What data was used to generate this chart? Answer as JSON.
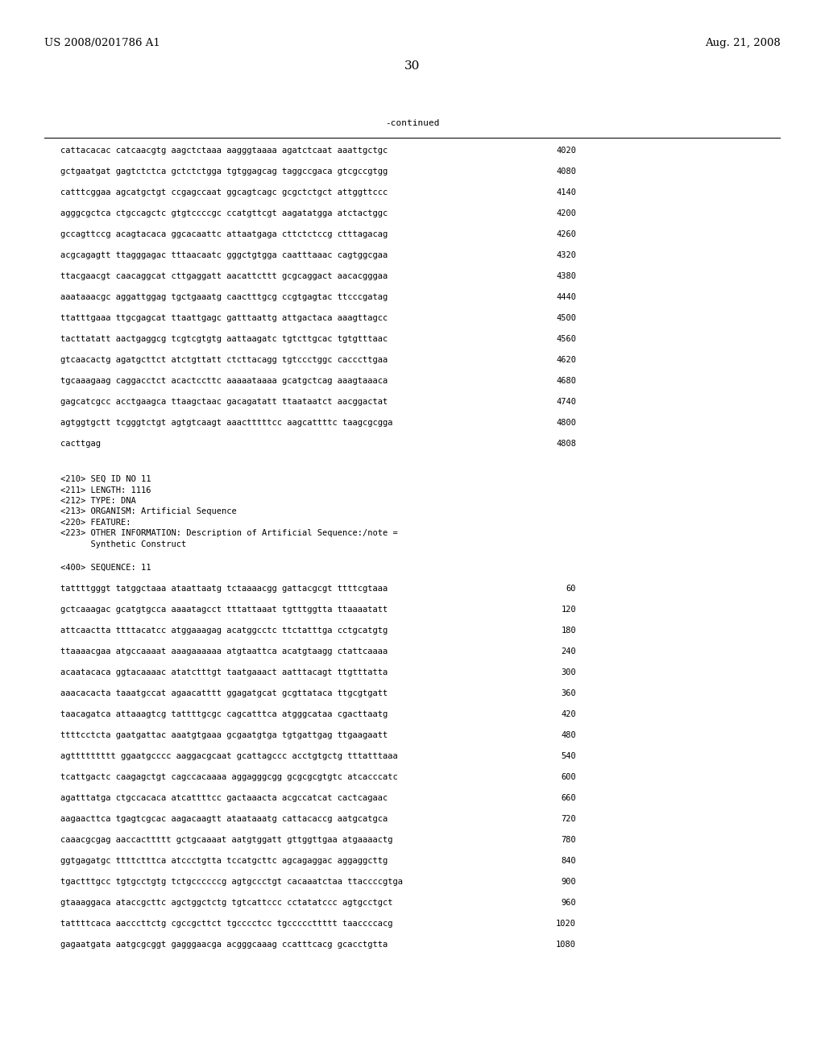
{
  "header_left": "US 2008/0201786 A1",
  "header_right": "Aug. 21, 2008",
  "page_number": "30",
  "continued_label": "-continued",
  "background_color": "#ffffff",
  "text_color": "#000000",
  "mono_font_size": 7.5,
  "header_font_size": 9.5,
  "page_num_font_size": 11,
  "sequence_lines_top": [
    [
      "cattacacac catcaacgtg aagctctaaa aagggtaaaa agatctcaat aaattgctgc",
      "4020"
    ],
    [
      "gctgaatgat gagtctctca gctctctgga tgtggagcag taggccgaca gtcgccgtgg",
      "4080"
    ],
    [
      "catttcggaa agcatgctgt ccgagccaat ggcagtcagc gcgctctgct attggttccc",
      "4140"
    ],
    [
      "agggcgctca ctgccagctc gtgtccccgc ccatgttcgt aagatatgga atctactggc",
      "4200"
    ],
    [
      "gccagttccg acagtacaca ggcacaattc attaatgaga cttctctccg ctttagacag",
      "4260"
    ],
    [
      "acgcagagtt ttagggagac tttaacaatc gggctgtgga caatttaaac cagtggcgaa",
      "4320"
    ],
    [
      "ttacgaacgt caacaggcat cttgaggatt aacattcttt gcgcaggact aacacgggaa",
      "4380"
    ],
    [
      "aaataaacgc aggattggag tgctgaaatg caactttgcg ccgtgagtac ttcccgatag",
      "4440"
    ],
    [
      "ttatttgaaa ttgcgagcat ttaattgagc gatttaattg attgactaca aaagttagcc",
      "4500"
    ],
    [
      "tacttatatt aactgaggcg tcgtcgtgtg aattaagatc tgtcttgcac tgtgtttaac",
      "4560"
    ],
    [
      "gtcaacactg agatgcttct atctgttatt ctcttacagg tgtccctggc cacccttgaa",
      "4620"
    ],
    [
      "tgcaaagaag caggacctct acactccttc aaaaataaaa gcatgctcag aaagtaaaca",
      "4680"
    ],
    [
      "gagcatcgcc acctgaagca ttaagctaac gacagatatt ttaataatct aacggactat",
      "4740"
    ],
    [
      "agtggtgctt tcgggtctgt agtgtcaagt aaactttttcc aagcattttc taagcgcgga",
      "4800"
    ],
    [
      "cacttgag",
      "4808"
    ]
  ],
  "metadata_lines": [
    "<210> SEQ ID NO 11",
    "<211> LENGTH: 1116",
    "<212> TYPE: DNA",
    "<213> ORGANISM: Artificial Sequence",
    "<220> FEATURE:",
    "<223> OTHER INFORMATION: Description of Artificial Sequence:/note =",
    "      Synthetic Construct"
  ],
  "sequence_label": "<400> SEQUENCE: 11",
  "sequence_lines_bottom": [
    [
      "tattttgggt tatggctaaa ataattaatg tctaaaacgg gattacgcgt ttttcgtaaa",
      "60"
    ],
    [
      "gctcaaagac gcatgtgcca aaaatagcct tttattaaat tgtttggtta ttaaaatatt",
      "120"
    ],
    [
      "attcaactta ttttacatcc atggaaagag acatggcctc ttctatttga cctgcatgtg",
      "180"
    ],
    [
      "ttaaaacgaa atgccaaaat aaagaaaaaa atgtaattca acatgtaagg ctattcaaaa",
      "240"
    ],
    [
      "acaatacaca ggtacaaaac atatctttgt taatgaaact aatttacagt ttgtttatta",
      "300"
    ],
    [
      "aaacacacta taaatgccat agaacatttt ggagatgcat gcgttataca ttgcgtgatt",
      "360"
    ],
    [
      "taacagatca attaaagtcg tattttgcgc cagcatttca atgggcataa cgacttaatg",
      "420"
    ],
    [
      "ttttcctcta gaatgattac aaatgtgaaa gcgaatgtga tgtgattgag ttgaagaatt",
      "480"
    ],
    [
      "agttttttttt ggaatgcccc aaggacgcaat gcattagccc acctgtgctg tttatttaaa",
      "540"
    ],
    [
      "tcattgactc caagagctgt cagccacaaaa aggagggcgg gcgcgcgtgtc atcacccatc",
      "600"
    ],
    [
      "agatttatga ctgccacaca atcattttcc gactaaacta acgccatcat cactcagaac",
      "660"
    ],
    [
      "aagaacttca tgagtcgcac aagacaagtt ataataaatg cattacaccg aatgcatgca",
      "720"
    ],
    [
      "caaacgcgag aaccacttttt gctgcaaaat aatgtggatt gttggttgaa atgaaaactg",
      "780"
    ],
    [
      "ggtgagatgc ttttctttca atccctgtta tccatgcttc agcagaggac aggaggcttg",
      "840"
    ],
    [
      "tgactttgcc tgtgcctgtg tctgccccccg agtgccctgt cacaaatctaa ttaccccgtga",
      "900"
    ],
    [
      "gtaaaggaca ataccgcttc agctggctctg tgtcattccc cctatatccc agtgcctgct",
      "960"
    ],
    [
      "tattttcaca aacccttctg cgccgcttct tgcccctcc tgcccccttttt taaccccacg",
      "1020"
    ],
    [
      "gagaatgata aatgcgcggt gagggaacga acgggcaaag ccatttcacg gcacctgtta",
      "1080"
    ]
  ]
}
